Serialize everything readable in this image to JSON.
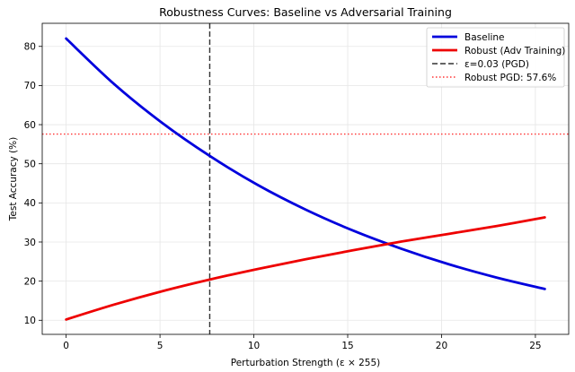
{
  "chart_data": {
    "type": "line",
    "title": "Robustness Curves: Baseline vs Adversarial Training",
    "xlabel": "Perturbation Strength (ε × 255)",
    "ylabel": "Test Accuracy (%)",
    "xlim": [
      -1.275,
      26.775
    ],
    "ylim": [
      6.4,
      85.9
    ],
    "xticks": [
      0,
      5,
      10,
      15,
      20,
      25
    ],
    "yticks": [
      10,
      20,
      30,
      40,
      50,
      60,
      70,
      80
    ],
    "grid": true,
    "legend_position": "upper right",
    "series": [
      {
        "name": "Baseline",
        "color": "#0000dd",
        "style": "solid",
        "x": [
          0,
          2.55,
          5.1,
          7.65,
          10.2,
          12.75,
          15.3,
          17.85,
          20.4,
          22.95,
          25.5
        ],
        "y": [
          82.0,
          70.4,
          60.5,
          52.0,
          44.6,
          38.3,
          32.9,
          28.3,
          24.3,
          20.9,
          18.0
        ]
      },
      {
        "name": "Robust (Adv Training)",
        "color": "#ee0000",
        "style": "solid",
        "x": [
          0,
          2.55,
          5.1,
          7.65,
          10.2,
          12.75,
          15.3,
          17.85,
          20.4,
          22.95,
          25.5
        ],
        "y": [
          10.2,
          14.0,
          17.4,
          20.4,
          23.1,
          25.6,
          27.9,
          30.1,
          32.1,
          34.1,
          36.3
        ]
      }
    ],
    "reference_lines": [
      {
        "name": "ε=0.03 (PGD)",
        "orientation": "vertical",
        "value": 7.65,
        "color": "#333333",
        "style": "dashed"
      },
      {
        "name": "Robust PGD: 57.6%",
        "orientation": "horizontal",
        "value": 57.6,
        "color": "#ff3333",
        "style": "dotted"
      }
    ]
  }
}
